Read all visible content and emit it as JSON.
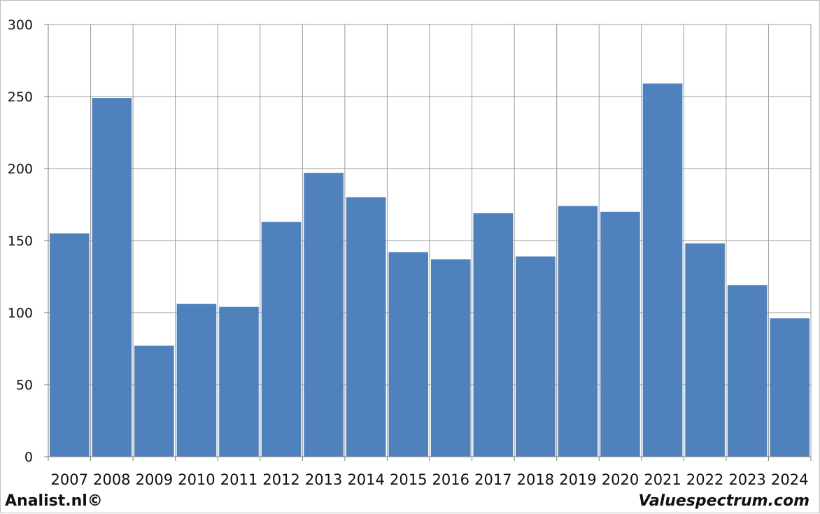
{
  "chart_data": {
    "type": "bar",
    "categories": [
      "2007",
      "2008",
      "2009",
      "2010",
      "2011",
      "2012",
      "2013",
      "2014",
      "2015",
      "2016",
      "2017",
      "2018",
      "2019",
      "2020",
      "2021",
      "2022",
      "2023",
      "2024"
    ],
    "values": [
      155,
      249,
      77,
      106,
      104,
      163,
      197,
      180,
      142,
      137,
      169,
      139,
      174,
      170,
      259,
      148,
      119,
      96
    ],
    "title": "",
    "xlabel": "",
    "ylabel": "",
    "ylim": [
      0,
      300
    ],
    "yticks": [
      0,
      50,
      100,
      150,
      200,
      250,
      300
    ],
    "grid": true,
    "legend": "none",
    "colors": {
      "bar": "#4f81bd",
      "grid": "#9a9a9a",
      "axis": "#7f7f7f"
    }
  },
  "footer": {
    "left": "Analist.nl©",
    "right": "Valuespectrum.com"
  }
}
